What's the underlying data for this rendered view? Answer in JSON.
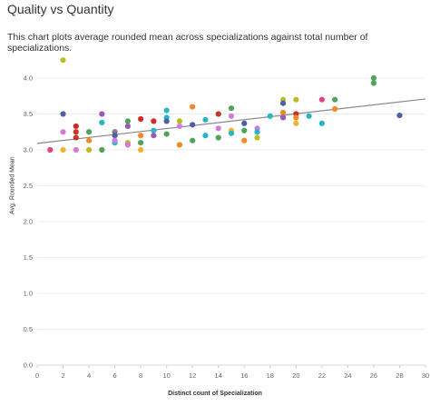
{
  "chart_data": {
    "type": "scatter",
    "title": "Quality vs Quantity",
    "subtitle": "This chart plots average rounded mean across specializations against total number of specializations.",
    "xlabel": "Distinct count of Specialization",
    "ylabel": "Avg. Rounded Mean",
    "xlim": [
      0,
      30
    ],
    "ylim": [
      0,
      4.0
    ],
    "x_ticks": [
      "0",
      "2",
      "4",
      "6",
      "8",
      "10",
      "12",
      "14",
      "16",
      "18",
      "20",
      "22",
      "24",
      "26",
      "28",
      "30"
    ],
    "y_ticks": [
      "0.0",
      "0.5",
      "1.0",
      "1.5",
      "2.0",
      "2.5",
      "3.0",
      "3.5",
      "4.0"
    ],
    "trend_line": {
      "x": [
        0,
        30
      ],
      "y": [
        3.09,
        3.71
      ],
      "color": "#888888"
    },
    "points": [
      {
        "x": 1,
        "y": 3.0,
        "color": "#e0457b"
      },
      {
        "x": 2,
        "y": 4.25,
        "color": "#bcbd22"
      },
      {
        "x": 2,
        "y": 3.5,
        "color": "#4e5fa6"
      },
      {
        "x": 2,
        "y": 3.25,
        "color": "#d37bd6"
      },
      {
        "x": 2,
        "y": 3.0,
        "color": "#f2b134"
      },
      {
        "x": 3,
        "y": 3.33,
        "color": "#d62728"
      },
      {
        "x": 3,
        "y": 3.25,
        "color": "#c0392b"
      },
      {
        "x": 3,
        "y": 3.17,
        "color": "#c0392b"
      },
      {
        "x": 3,
        "y": 3.0,
        "color": "#d37bd6"
      },
      {
        "x": 4,
        "y": 3.25,
        "color": "#4fa35a"
      },
      {
        "x": 4,
        "y": 3.13,
        "color": "#f08a24"
      },
      {
        "x": 4,
        "y": 3.0,
        "color": "#bcbd22"
      },
      {
        "x": 5,
        "y": 3.5,
        "color": "#9b59b6"
      },
      {
        "x": 5,
        "y": 3.38,
        "color": "#26b6c4"
      },
      {
        "x": 5,
        "y": 3.0,
        "color": "#4fa35a"
      },
      {
        "x": 6,
        "y": 3.25,
        "color": "#7f7f7f"
      },
      {
        "x": 6,
        "y": 3.2,
        "color": "#4e5fa6"
      },
      {
        "x": 6,
        "y": 3.1,
        "color": "#26b6c4"
      },
      {
        "x": 6,
        "y": 3.13,
        "color": "#d37bd6"
      },
      {
        "x": 7,
        "y": 3.4,
        "color": "#4fa35a"
      },
      {
        "x": 7,
        "y": 3.33,
        "color": "#9b59b6"
      },
      {
        "x": 7,
        "y": 3.1,
        "color": "#bcbd22"
      },
      {
        "x": 7,
        "y": 3.07,
        "color": "#d37bd6"
      },
      {
        "x": 8,
        "y": 3.43,
        "color": "#d62728"
      },
      {
        "x": 8,
        "y": 3.2,
        "color": "#f08a24"
      },
      {
        "x": 8,
        "y": 3.1,
        "color": "#4fa35a"
      },
      {
        "x": 8,
        "y": 3.0,
        "color": "#f2b134"
      },
      {
        "x": 9,
        "y": 3.4,
        "color": "#d62728"
      },
      {
        "x": 9,
        "y": 3.27,
        "color": "#26b6c4"
      },
      {
        "x": 9,
        "y": 3.2,
        "color": "#9b59b6"
      },
      {
        "x": 10,
        "y": 3.55,
        "color": "#26b6c4"
      },
      {
        "x": 10,
        "y": 3.45,
        "color": "#26b6c4"
      },
      {
        "x": 10,
        "y": 3.4,
        "color": "#4e5fa6"
      },
      {
        "x": 10,
        "y": 3.22,
        "color": "#4fa35a"
      },
      {
        "x": 11,
        "y": 3.4,
        "color": "#bcbd22"
      },
      {
        "x": 11,
        "y": 3.33,
        "color": "#d37bd6"
      },
      {
        "x": 11,
        "y": 3.07,
        "color": "#f08a24"
      },
      {
        "x": 12,
        "y": 3.6,
        "color": "#f08a24"
      },
      {
        "x": 12,
        "y": 3.35,
        "color": "#4e5fa6"
      },
      {
        "x": 12,
        "y": 3.13,
        "color": "#4fa35a"
      },
      {
        "x": 13,
        "y": 3.42,
        "color": "#26b6c4"
      },
      {
        "x": 13,
        "y": 3.2,
        "color": "#26b6c4"
      },
      {
        "x": 14,
        "y": 3.5,
        "color": "#c0392b"
      },
      {
        "x": 14,
        "y": 3.3,
        "color": "#d37bd6"
      },
      {
        "x": 14,
        "y": 3.17,
        "color": "#4fa35a"
      },
      {
        "x": 15,
        "y": 3.58,
        "color": "#4fa35a"
      },
      {
        "x": 15,
        "y": 3.47,
        "color": "#d37bd6"
      },
      {
        "x": 15,
        "y": 3.27,
        "color": "#f2b134"
      },
      {
        "x": 15,
        "y": 3.23,
        "color": "#26b6c4"
      },
      {
        "x": 16,
        "y": 3.37,
        "color": "#4e5fa6"
      },
      {
        "x": 16,
        "y": 3.27,
        "color": "#4fa35a"
      },
      {
        "x": 16,
        "y": 3.13,
        "color": "#f08a24"
      },
      {
        "x": 17,
        "y": 3.3,
        "color": "#d37bd6"
      },
      {
        "x": 17,
        "y": 3.25,
        "color": "#26b6c4"
      },
      {
        "x": 17,
        "y": 3.17,
        "color": "#bcbd22"
      },
      {
        "x": 18,
        "y": 3.47,
        "color": "#26b6c4"
      },
      {
        "x": 19,
        "y": 3.7,
        "color": "#bcbd22"
      },
      {
        "x": 19,
        "y": 3.65,
        "color": "#4e5fa6"
      },
      {
        "x": 19,
        "y": 3.52,
        "color": "#f08a24"
      },
      {
        "x": 19,
        "y": 3.45,
        "color": "#9b59b6"
      },
      {
        "x": 20,
        "y": 3.7,
        "color": "#bcbd22"
      },
      {
        "x": 20,
        "y": 3.5,
        "color": "#d62728"
      },
      {
        "x": 20,
        "y": 3.45,
        "color": "#f08a24"
      },
      {
        "x": 20,
        "y": 3.37,
        "color": "#f2b134"
      },
      {
        "x": 21,
        "y": 3.47,
        "color": "#26b6c4"
      },
      {
        "x": 22,
        "y": 3.7,
        "color": "#e0457b"
      },
      {
        "x": 22,
        "y": 3.37,
        "color": "#26b6c4"
      },
      {
        "x": 23,
        "y": 3.7,
        "color": "#4fa35a"
      },
      {
        "x": 23,
        "y": 3.57,
        "color": "#f08a24"
      },
      {
        "x": 26,
        "y": 4.0,
        "color": "#4fa35a"
      },
      {
        "x": 26,
        "y": 3.93,
        "color": "#4fa35a"
      },
      {
        "x": 28,
        "y": 3.48,
        "color": "#4e5fa6"
      }
    ]
  }
}
